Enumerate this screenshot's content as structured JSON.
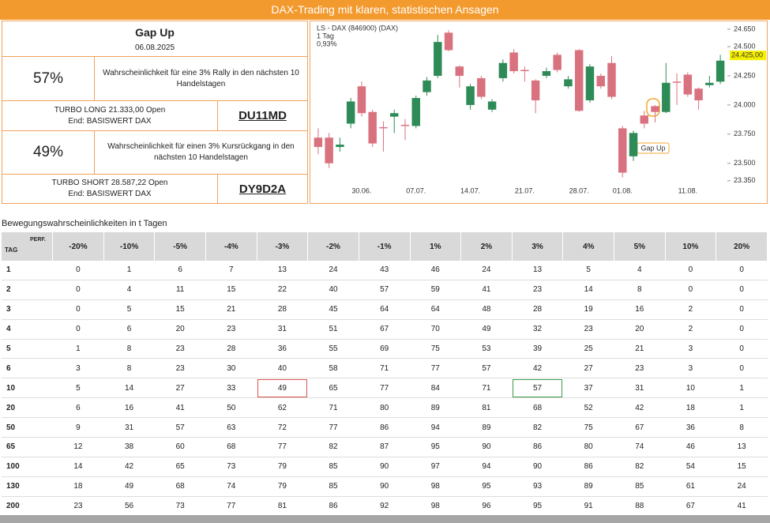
{
  "header": {
    "title": "DAX-Trading mit klaren, statistischen Ansagen"
  },
  "signal": {
    "title": "Gap Up",
    "date": "06.08.2025",
    "long": {
      "probability": "57%",
      "text": "Wahrscheinlichkeit für eine 3% Rally in den nächsten 10 Handelstagen",
      "product": "TURBO LONG 21.333,00 Open End: BASISWERT DAX",
      "code": "DU11MD"
    },
    "short": {
      "probability": "49%",
      "text": "Wahrscheinlichkeit für einen 3% Kursrückgang in den nächsten 10 Handelstagen",
      "product": "TURBO SHORT 28.587,22 Open End: BASISWERT DAX",
      "code": "DY9D2A"
    }
  },
  "chart_data": {
    "type": "candlestick",
    "title": "LS - DAX (846900) (DAX)",
    "subtitle": "1 Tag",
    "change_label": "0,93%",
    "annotation": "Gap Up",
    "categories": [
      null,
      null,
      null,
      null,
      "30.06.",
      null,
      null,
      null,
      null,
      "07.07.",
      null,
      null,
      null,
      null,
      "14.07.",
      null,
      null,
      null,
      null,
      "21.07.",
      null,
      null,
      null,
      null,
      "28.07.",
      null,
      null,
      null,
      "01.08.",
      null,
      null,
      null,
      null,
      null,
      "11.08.",
      null,
      null,
      null
    ],
    "open": [
      23720,
      23720,
      23640,
      23840,
      24160,
      23940,
      23810,
      23900,
      23830,
      23820,
      24110,
      24250,
      24620,
      24330,
      24000,
      24230,
      23960,
      24230,
      24450,
      24300,
      24210,
      24250,
      24430,
      24160,
      24470,
      24040,
      24250,
      24360,
      23800,
      23560,
      23910,
      23990,
      23940,
      24200,
      24260,
      24140,
      24170,
      24200
    ],
    "high": [
      23800,
      23760,
      23720,
      24060,
      24200,
      23960,
      23860,
      23960,
      23880,
      24080,
      24240,
      24600,
      24640,
      24340,
      24180,
      24250,
      24050,
      24390,
      24480,
      24330,
      24220,
      24320,
      24450,
      24250,
      24480,
      24350,
      24270,
      24420,
      23820,
      23780,
      23950,
      24000,
      24360,
      24270,
      24280,
      24150,
      24250,
      24430
    ],
    "low": [
      23580,
      23460,
      23600,
      23800,
      23900,
      23640,
      23600,
      23760,
      23700,
      23800,
      24080,
      24230,
      24460,
      24150,
      23960,
      24050,
      23940,
      24200,
      24270,
      24200,
      23930,
      24230,
      24280,
      24140,
      23940,
      24020,
      24140,
      24050,
      23380,
      23520,
      23800,
      23850,
      23930,
      24000,
      24070,
      23960,
      24150,
      24180
    ],
    "close": [
      23640,
      23500,
      23660,
      24030,
      23930,
      23670,
      23800,
      23930,
      23820,
      24060,
      24210,
      24540,
      24470,
      24250,
      24160,
      24070,
      24030,
      24360,
      24290,
      24290,
      24040,
      24290,
      24300,
      24220,
      23950,
      24330,
      24160,
      24070,
      23420,
      23760,
      23840,
      23940,
      24190,
      24190,
      24090,
      24040,
      24190,
      24380
    ],
    "up_color": "#2e8b57",
    "down_color": "#d9727f",
    "ylim": [
      23200,
      24690
    ],
    "yticks": [
      {
        "value": 23350,
        "label": "23.350"
      },
      {
        "value": 23500,
        "label": "23.500"
      },
      {
        "value": 23750,
        "label": "23.750"
      },
      {
        "value": 24000,
        "label": "24.000"
      },
      {
        "value": 24250,
        "label": "24.250"
      },
      {
        "value": 24500,
        "label": "24.500"
      },
      {
        "value": 24650,
        "label": "24.650"
      }
    ],
    "last_price": {
      "value": 24425,
      "label": "24.425,00"
    }
  },
  "table": {
    "title": "Bewegungswahrscheinlichkeiten in t Tagen",
    "row_header": "TAG",
    "column_header": "PERF.",
    "columns": [
      "-20%",
      "-10%",
      "-5%",
      "-4%",
      "-3%",
      "-2%",
      "-1%",
      "1%",
      "2%",
      "3%",
      "4%",
      "5%",
      "10%",
      "20%"
    ],
    "rows": [
      {
        "tag": 1,
        "values": [
          0,
          1,
          6,
          7,
          13,
          24,
          43,
          46,
          24,
          13,
          5,
          4,
          0,
          0
        ]
      },
      {
        "tag": 2,
        "values": [
          0,
          4,
          11,
          15,
          22,
          40,
          57,
          59,
          41,
          23,
          14,
          8,
          0,
          0
        ]
      },
      {
        "tag": 3,
        "values": [
          0,
          5,
          15,
          21,
          28,
          45,
          64,
          64,
          48,
          28,
          19,
          16,
          2,
          0
        ]
      },
      {
        "tag": 4,
        "values": [
          0,
          6,
          20,
          23,
          31,
          51,
          67,
          70,
          49,
          32,
          23,
          20,
          2,
          0
        ]
      },
      {
        "tag": 5,
        "values": [
          1,
          8,
          23,
          28,
          36,
          55,
          69,
          75,
          53,
          39,
          25,
          21,
          3,
          0
        ]
      },
      {
        "tag": 6,
        "values": [
          3,
          8,
          23,
          30,
          40,
          58,
          71,
          77,
          57,
          42,
          27,
          23,
          3,
          0
        ]
      },
      {
        "tag": 10,
        "values": [
          5,
          14,
          27,
          33,
          49,
          65,
          77,
          84,
          71,
          57,
          37,
          31,
          10,
          1
        ]
      },
      {
        "tag": 20,
        "values": [
          6,
          16,
          41,
          50,
          62,
          71,
          80,
          89,
          81,
          68,
          52,
          42,
          18,
          1
        ]
      },
      {
        "tag": 50,
        "values": [
          9,
          31,
          57,
          63,
          72,
          77,
          86,
          94,
          89,
          82,
          75,
          67,
          36,
          8
        ]
      },
      {
        "tag": 65,
        "values": [
          12,
          38,
          60,
          68,
          77,
          82,
          87,
          95,
          90,
          86,
          80,
          74,
          46,
          13
        ]
      },
      {
        "tag": 100,
        "values": [
          14,
          42,
          65,
          73,
          79,
          85,
          90,
          97,
          94,
          90,
          86,
          82,
          54,
          15
        ]
      },
      {
        "tag": 130,
        "values": [
          18,
          49,
          68,
          74,
          79,
          85,
          90,
          98,
          95,
          93,
          89,
          85,
          61,
          24
        ]
      },
      {
        "tag": 200,
        "values": [
          23,
          56,
          73,
          77,
          81,
          86,
          92,
          98,
          96,
          95,
          91,
          88,
          67,
          41
        ]
      }
    ]
  }
}
